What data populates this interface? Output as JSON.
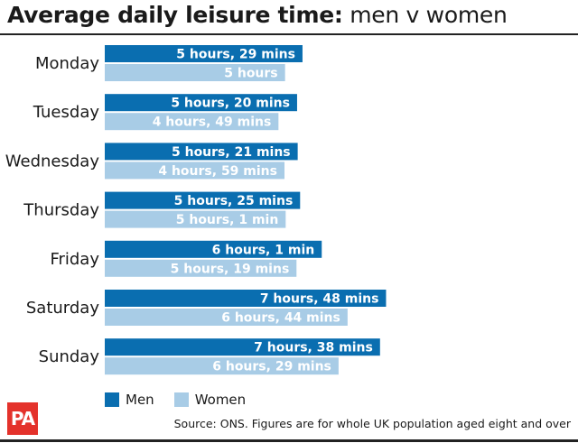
{
  "title_bold": "Average daily leisure time:",
  "title_light": "men v women",
  "source": "Source: ONS. Figures are for whole UK population aged eight and over",
  "logo_text": "PA",
  "colors": {
    "men": "#0a6eb0",
    "women": "#a8cce6"
  },
  "chart_data": {
    "type": "bar",
    "orientation": "horizontal",
    "unit": "minutes",
    "categories": [
      "Monday",
      "Tuesday",
      "Wednesday",
      "Thursday",
      "Friday",
      "Saturday",
      "Sunday"
    ],
    "series": [
      {
        "name": "Men",
        "values": [
          329,
          320,
          321,
          325,
          361,
          468,
          458
        ],
        "labels": [
          "5 hours, 29 mins",
          "5 hours, 20 mins",
          "5 hours, 21 mins",
          "5 hours, 25 mins",
          "6 hours, 1 min",
          "7 hours, 48 mins",
          "7 hours, 38 mins"
        ]
      },
      {
        "name": "Women",
        "values": [
          300,
          289,
          299,
          301,
          319,
          404,
          389
        ],
        "labels": [
          "5 hours",
          "4 hours, 49 mins",
          "4 hours, 59 mins",
          "5 hours, 1 min",
          "5 hours, 19 mins",
          "6 hours, 44 mins",
          "6 hours, 29 mins"
        ]
      }
    ],
    "legend_position": "bottom-left",
    "grid": false
  }
}
